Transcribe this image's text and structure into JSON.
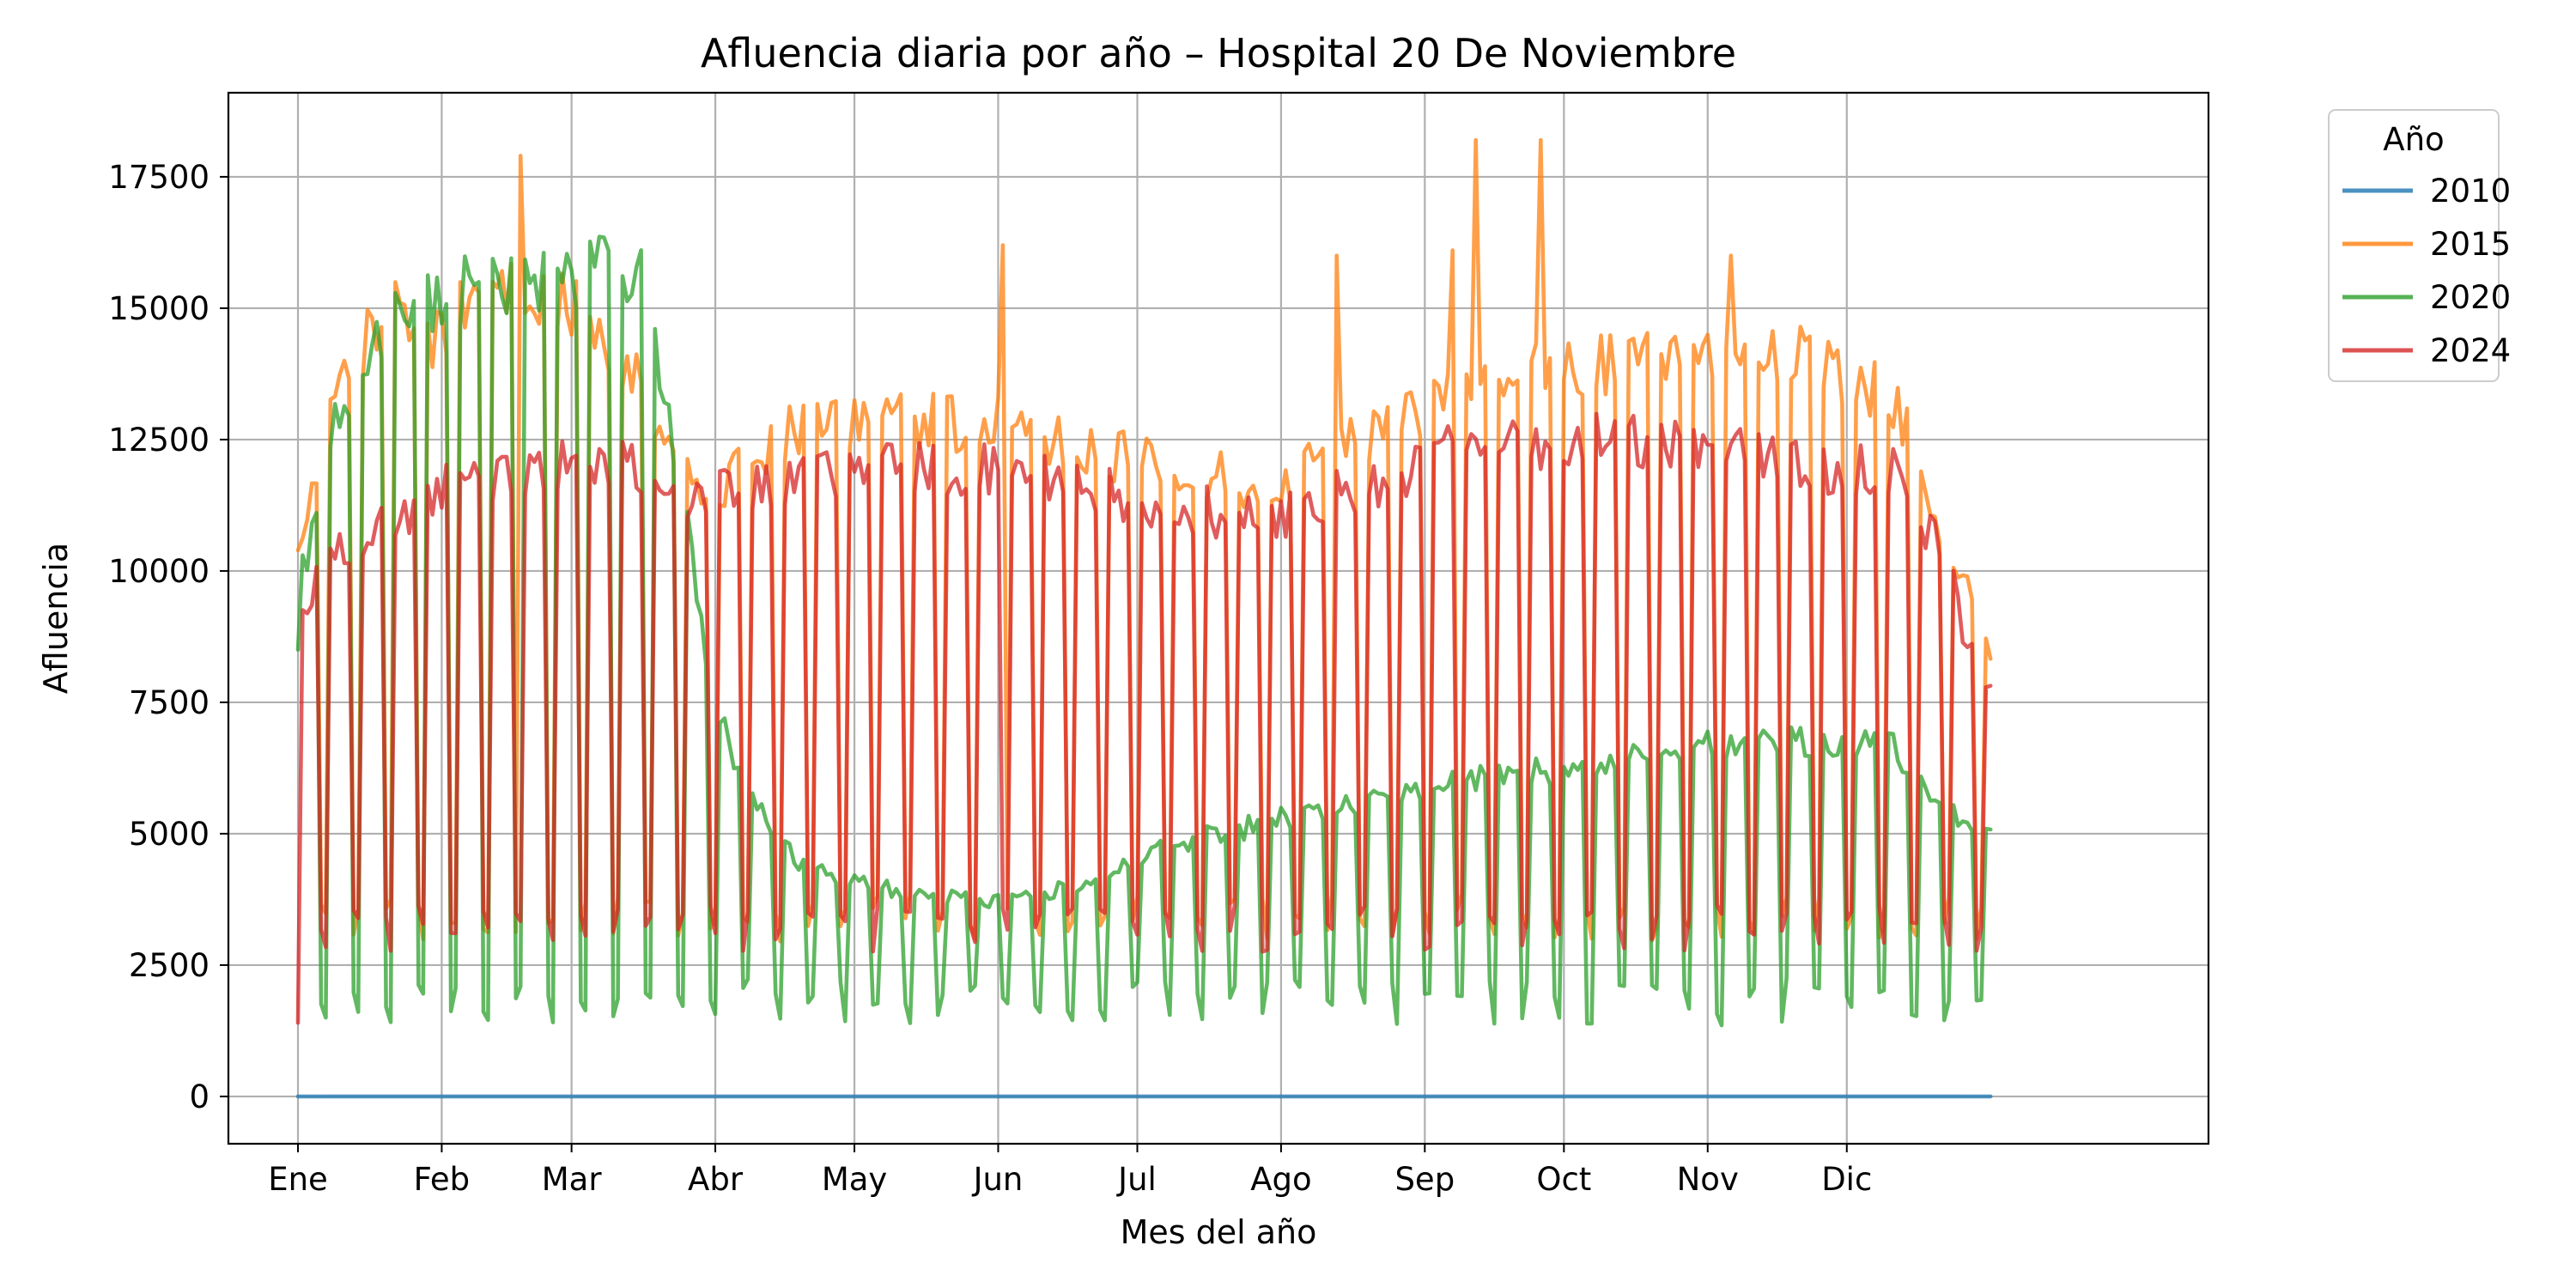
{
  "chart_data": {
    "type": "line",
    "title": "Afluencia diaria por año – Hospital 20 De Noviembre",
    "xlabel": "Mes del año",
    "ylabel": "Afluencia",
    "x_unit": "day_of_year",
    "xlim": [
      -14,
      413
    ],
    "ylim": [
      -900,
      19100
    ],
    "x_ticks": [
      {
        "label": "Ene",
        "day": 1
      },
      {
        "label": "Feb",
        "day": 32
      },
      {
        "label": "Mar",
        "day": 60
      },
      {
        "label": "Abr",
        "day": 91
      },
      {
        "label": "May",
        "day": 121
      },
      {
        "label": "Jun",
        "day": 152
      },
      {
        "label": "Jul",
        "day": 182
      },
      {
        "label": "Ago",
        "day": 213
      },
      {
        "label": "Sep",
        "day": 244
      },
      {
        "label": "Oct",
        "day": 274
      },
      {
        "label": "Nov",
        "day": 305
      },
      {
        "label": "Dic",
        "day": 335
      }
    ],
    "y_ticks": [
      0,
      2500,
      5000,
      7500,
      10000,
      12500,
      15000,
      17500
    ],
    "grid": true,
    "legend": {
      "title": "Año",
      "placement": "outside-right"
    },
    "series_profiles": {
      "2010": [
        [
          1,
          0
        ],
        [
          365,
          0
        ]
      ],
      "2015": [
        [
          1,
          10000
        ],
        [
          10,
          13500
        ],
        [
          20,
          15000
        ],
        [
          30,
          14500
        ],
        [
          45,
          15500
        ],
        [
          60,
          15000
        ],
        [
          75,
          13500
        ],
        [
          90,
          11500
        ],
        [
          110,
          12800
        ],
        [
          130,
          12800
        ],
        [
          150,
          12800
        ],
        [
          170,
          12300
        ],
        [
          190,
          12000
        ],
        [
          210,
          11500
        ],
        [
          230,
          12500
        ],
        [
          250,
          13500
        ],
        [
          270,
          13800
        ],
        [
          290,
          14000
        ],
        [
          310,
          14200
        ],
        [
          330,
          14000
        ],
        [
          345,
          13200
        ],
        [
          355,
          11000
        ],
        [
          365,
          8500
        ]
      ],
      "2020": [
        [
          1,
          9500
        ],
        [
          8,
          12500
        ],
        [
          15,
          14200
        ],
        [
          25,
          15000
        ],
        [
          40,
          15500
        ],
        [
          55,
          15600
        ],
        [
          68,
          15700
        ],
        [
          75,
          15500
        ],
        [
          82,
          12500
        ],
        [
          90,
          8000
        ],
        [
          95,
          6500
        ],
        [
          100,
          5500
        ],
        [
          110,
          4400
        ],
        [
          130,
          3900
        ],
        [
          150,
          3700
        ],
        [
          170,
          4000
        ],
        [
          190,
          4800
        ],
        [
          210,
          5200
        ],
        [
          230,
          5600
        ],
        [
          250,
          6000
        ],
        [
          270,
          6200
        ],
        [
          290,
          6500
        ],
        [
          310,
          6700
        ],
        [
          330,
          6750
        ],
        [
          345,
          6700
        ],
        [
          355,
          5500
        ],
        [
          365,
          5000
        ]
      ],
      "2024": [
        [
          1,
          9000
        ],
        [
          10,
          10500
        ],
        [
          20,
          10800
        ],
        [
          30,
          11500
        ],
        [
          45,
          11800
        ],
        [
          60,
          12000
        ],
        [
          75,
          12000
        ],
        [
          85,
          11500
        ],
        [
          95,
          11500
        ],
        [
          110,
          11800
        ],
        [
          130,
          11900
        ],
        [
          150,
          11900
        ],
        [
          170,
          11600
        ],
        [
          190,
          11200
        ],
        [
          210,
          11000
        ],
        [
          230,
          11600
        ],
        [
          250,
          12300
        ],
        [
          270,
          12500
        ],
        [
          290,
          12500
        ],
        [
          310,
          12300
        ],
        [
          330,
          12000
        ],
        [
          345,
          11800
        ],
        [
          355,
          10500
        ],
        [
          365,
          7500
        ]
      ]
    },
    "series_lows": {
      "2010": 0,
      "2015": 3400,
      "2020": 1800,
      "2024": 3200
    },
    "series": [
      {
        "name": "2010",
        "color": "#1f77b4"
      },
      {
        "name": "2015",
        "color": "#ff7f0e"
      },
      {
        "name": "2020",
        "color": "#2ca02c"
      },
      {
        "name": "2024",
        "color": "#d62728"
      }
    ],
    "annotations": {
      "2015_peaks": [
        [
          49,
          17900
        ],
        [
          255,
          18200
        ],
        [
          269,
          18200
        ],
        [
          153,
          16200
        ],
        [
          250,
          16100
        ],
        [
          225,
          16000
        ],
        [
          310,
          16000
        ]
      ],
      "2020_start_low": [
        [
          1,
          8500
        ]
      ],
      "2024_start": [
        [
          1,
          1400
        ]
      ]
    }
  }
}
